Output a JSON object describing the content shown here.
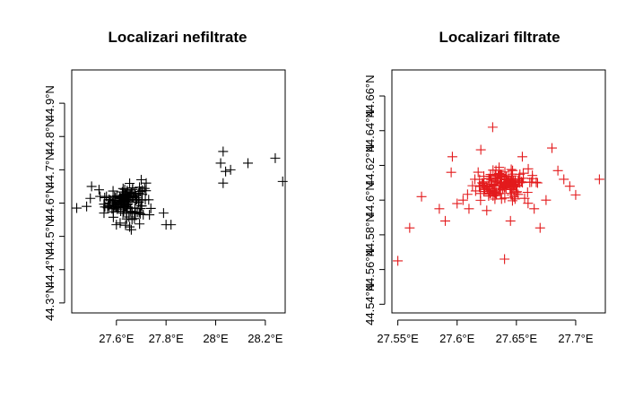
{
  "chart_data": [
    {
      "type": "scatter",
      "title": "Localizari nefiltrate",
      "marker": "+",
      "color": "#000000",
      "xlim": [
        27.42,
        28.28
      ],
      "ylim": [
        44.27,
        45.0
      ],
      "xticks": [
        27.6,
        27.8,
        28.0,
        28.2
      ],
      "xtick_labels": [
        "27.6°E",
        "27.8°E",
        "28°E",
        "28.2°E"
      ],
      "yticks": [
        44.3,
        44.4,
        44.5,
        44.6,
        44.7,
        44.8,
        44.9
      ],
      "ytick_labels": [
        "44.3°N",
        "44.4°N",
        "44.5°N",
        "44.6°N",
        "44.7°N",
        "44.8°N",
        "44.9°N"
      ],
      "cluster": {
        "center_x": 27.635,
        "center_y": 44.605,
        "spread_x": 0.04,
        "spread_y": 0.025,
        "count": 140
      },
      "points": [
        {
          "x": 27.44,
          "y": 44.585
        },
        {
          "x": 27.48,
          "y": 44.59
        },
        {
          "x": 27.5,
          "y": 44.65
        },
        {
          "x": 27.53,
          "y": 44.64
        },
        {
          "x": 27.55,
          "y": 44.57
        },
        {
          "x": 27.56,
          "y": 44.62
        },
        {
          "x": 27.6,
          "y": 44.535
        },
        {
          "x": 27.615,
          "y": 44.54
        },
        {
          "x": 27.66,
          "y": 44.52
        },
        {
          "x": 27.7,
          "y": 44.67
        },
        {
          "x": 27.72,
          "y": 44.66
        },
        {
          "x": 27.69,
          "y": 44.63
        },
        {
          "x": 27.73,
          "y": 44.61
        },
        {
          "x": 27.79,
          "y": 44.57
        },
        {
          "x": 27.8,
          "y": 44.535
        },
        {
          "x": 27.82,
          "y": 44.535
        },
        {
          "x": 28.03,
          "y": 44.755
        },
        {
          "x": 28.02,
          "y": 44.72
        },
        {
          "x": 28.03,
          "y": 44.66
        },
        {
          "x": 28.04,
          "y": 44.695
        },
        {
          "x": 28.06,
          "y": 44.7
        },
        {
          "x": 28.13,
          "y": 44.72
        },
        {
          "x": 28.24,
          "y": 44.735
        },
        {
          "x": 28.27,
          "y": 44.665
        }
      ]
    },
    {
      "type": "scatter",
      "title": "Localizari filtrate",
      "marker": "+",
      "color": "#e31a1c",
      "xlim": [
        27.545,
        27.725
      ],
      "ylim": [
        44.535,
        44.675
      ],
      "xticks": [
        27.55,
        27.6,
        27.65,
        27.7
      ],
      "xtick_labels": [
        "27.55°E",
        "27.6°E",
        "27.65°E",
        "27.7°E"
      ],
      "yticks": [
        44.54,
        44.56,
        44.58,
        44.6,
        44.62,
        44.64,
        44.66
      ],
      "ytick_labels": [
        "44.54°N",
        "44.56°N",
        "44.58°N",
        "44.6°N",
        "44.62°N",
        "44.64°N",
        "44.66°N"
      ],
      "cluster": {
        "center_x": 27.637,
        "center_y": 44.609,
        "spread_x": 0.012,
        "spread_y": 0.0045,
        "count": 140
      },
      "points": [
        {
          "x": 27.55,
          "y": 44.565
        },
        {
          "x": 27.56,
          "y": 44.584
        },
        {
          "x": 27.57,
          "y": 44.602
        },
        {
          "x": 27.585,
          "y": 44.595
        },
        {
          "x": 27.59,
          "y": 44.588
        },
        {
          "x": 27.595,
          "y": 44.616
        },
        {
          "x": 27.596,
          "y": 44.625
        },
        {
          "x": 27.6,
          "y": 44.598
        },
        {
          "x": 27.605,
          "y": 44.6
        },
        {
          "x": 27.61,
          "y": 44.595
        },
        {
          "x": 27.615,
          "y": 44.612
        },
        {
          "x": 27.62,
          "y": 44.629
        },
        {
          "x": 27.625,
          "y": 44.594
        },
        {
          "x": 27.63,
          "y": 44.642
        },
        {
          "x": 27.64,
          "y": 44.566
        },
        {
          "x": 27.645,
          "y": 44.588
        },
        {
          "x": 27.655,
          "y": 44.625
        },
        {
          "x": 27.66,
          "y": 44.618
        },
        {
          "x": 27.665,
          "y": 44.595
        },
        {
          "x": 27.67,
          "y": 44.584
        },
        {
          "x": 27.675,
          "y": 44.6
        },
        {
          "x": 27.68,
          "y": 44.63
        },
        {
          "x": 27.685,
          "y": 44.617
        },
        {
          "x": 27.69,
          "y": 44.612
        },
        {
          "x": 27.695,
          "y": 44.608
        },
        {
          "x": 27.7,
          "y": 44.603
        },
        {
          "x": 27.72,
          "y": 44.612
        }
      ]
    }
  ]
}
